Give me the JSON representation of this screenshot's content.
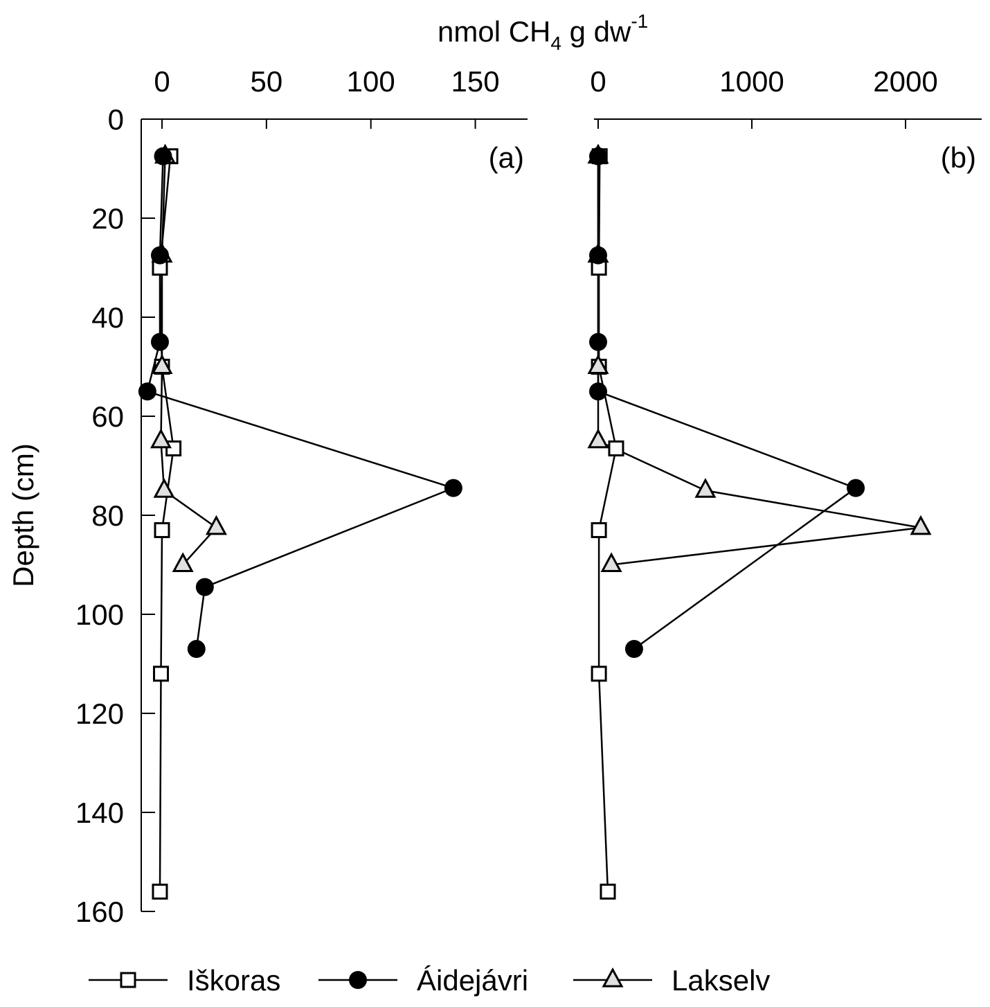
{
  "chart_data": [
    {
      "type": "line",
      "panel_label": "(a)",
      "ylabel": "Depth (cm)",
      "ylim": [
        0,
        160
      ],
      "y_ticks": [
        "0",
        "20",
        "40",
        "60",
        "80",
        "100",
        "120",
        "140",
        "160"
      ],
      "xlim": [
        -10,
        175
      ],
      "x_ticks": [
        "0",
        "50",
        "100",
        "150"
      ],
      "y_inverted": true,
      "grid": false,
      "series": [
        {
          "name": "Iškoras",
          "marker": "square-open",
          "points": [
            [
              4,
              7.5
            ],
            [
              -1,
              30
            ],
            [
              0,
              50
            ],
            [
              5.5,
              66.5
            ],
            [
              0,
              83
            ],
            [
              -0.5,
              112
            ],
            [
              -1,
              156
            ]
          ]
        },
        {
          "name": "Áidejávri",
          "marker": "circle-filled",
          "points": [
            [
              0.5,
              7.5
            ],
            [
              -1,
              27.5
            ],
            [
              -1,
              45
            ],
            [
              -7,
              55
            ],
            [
              139.5,
              74.5
            ],
            [
              20.5,
              94.5
            ],
            [
              16.5,
              107
            ]
          ]
        },
        {
          "name": "Lakselv",
          "marker": "triangle-gray",
          "points": [
            [
              1.5,
              7.5
            ],
            [
              0,
              27.5
            ],
            [
              0,
              50
            ],
            [
              -0.5,
              65
            ],
            [
              1,
              75
            ],
            [
              26,
              82.5
            ],
            [
              10,
              90
            ]
          ]
        }
      ]
    },
    {
      "type": "line",
      "panel_label": "(b)",
      "ylim": [
        0,
        160
      ],
      "y_inverted": true,
      "xlim": [
        -30,
        2495
      ],
      "x_ticks": [
        "0",
        "1000",
        "2000"
      ],
      "grid": false,
      "series": [
        {
          "name": "Iškoras",
          "marker": "square-open",
          "points": [
            [
              10,
              7.5
            ],
            [
              5,
              30
            ],
            [
              5,
              50
            ],
            [
              117,
              66.5
            ],
            [
              5,
              83
            ],
            [
              5,
              112
            ],
            [
              63,
              156
            ]
          ]
        },
        {
          "name": "Áidejávri",
          "marker": "circle-filled",
          "points": [
            [
              0,
              7.5
            ],
            [
              0,
              27.5
            ],
            [
              0,
              45
            ],
            [
              0,
              55
            ],
            [
              1676,
              74.5
            ],
            [
              234,
              107
            ]
          ]
        },
        {
          "name": "Lakselv",
          "marker": "triangle-gray",
          "points": [
            [
              0,
              7.5
            ],
            [
              0,
              27.5
            ],
            [
              0,
              50
            ],
            [
              0,
              65
            ],
            [
              698,
              75
            ],
            [
              2099,
              82.5
            ],
            [
              86,
              90
            ]
          ]
        }
      ]
    }
  ],
  "shared_xlabel": {
    "main": "nmol CH",
    "sub": "4",
    "rest": " g dw",
    "sup": "-1"
  },
  "legend": {
    "placement": "bottom",
    "entries": [
      "Iškoras",
      "Áidejávri",
      "Lakselv"
    ]
  },
  "colors": {
    "line": "#000000",
    "triangle_fill": "#e0e0e0",
    "square_fill": "#ffffff",
    "circle_fill": "#000000"
  }
}
